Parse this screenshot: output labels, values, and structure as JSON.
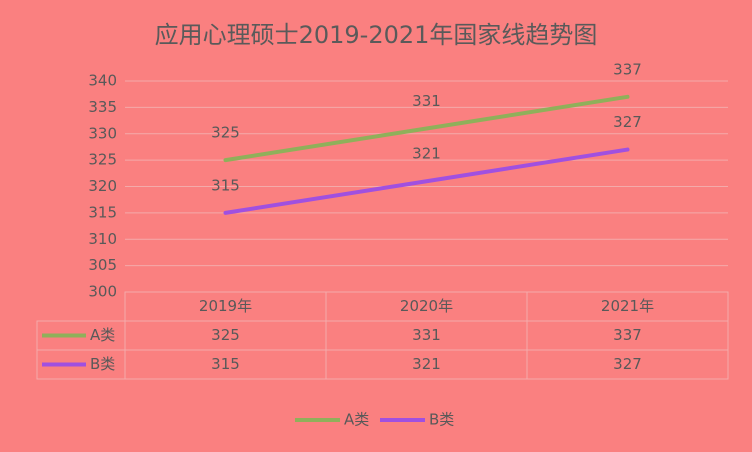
{
  "chart_data": {
    "type": "line",
    "title": "应用心理硕士2019-2021年国家线趋势图",
    "categories": [
      "2019年",
      "2020年",
      "2021年"
    ],
    "series": [
      {
        "name": "A类",
        "color": "#8fb05a",
        "values": [
          325,
          331,
          337
        ]
      },
      {
        "name": "B类",
        "color": "#a050e0",
        "values": [
          315,
          321,
          327
        ]
      }
    ],
    "ylim": [
      300,
      340
    ],
    "yticks": [
      300,
      305,
      310,
      315,
      320,
      325,
      330,
      335,
      340
    ],
    "grid": true,
    "legend": "bottom",
    "data_table": true,
    "data_labels": true
  }
}
